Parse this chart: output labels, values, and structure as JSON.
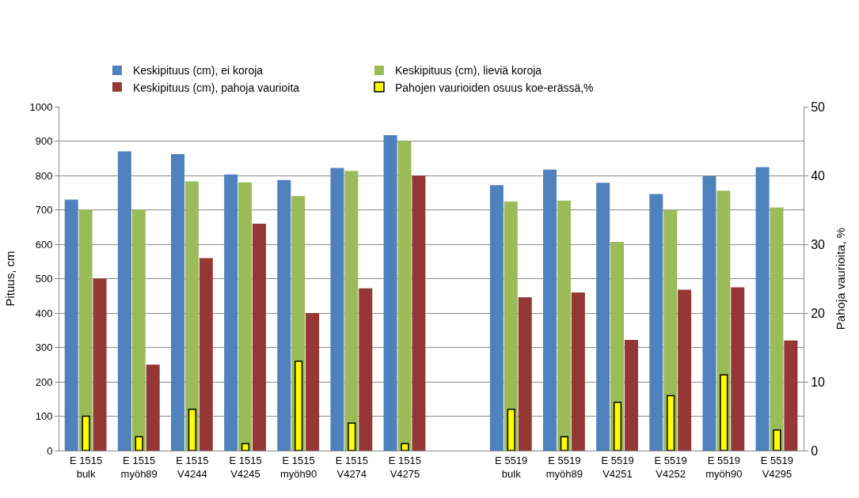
{
  "chart_data": {
    "type": "bar",
    "categories": [
      "E 1515\nbulk",
      "E 1515\nmyöh89",
      "E 1515\nV4244",
      "E 1515\nV4245",
      "E 1515\nmyöh90",
      "E 1515\nV4274",
      "E 1515\nV4275",
      null,
      "E 5519\nbulk",
      "E 5519\nmyöh89",
      "E 5519\nV4251",
      "E 5519\nV4252",
      "E 5519\nmyöh90",
      "E 5519\nV4295"
    ],
    "series": [
      {
        "name": "Keskipituus (cm), ei koroja",
        "color": "#4f81bd",
        "values": [
          730,
          870,
          862,
          803,
          787,
          822,
          917,
          null,
          772,
          817,
          779,
          746,
          798,
          824
        ]
      },
      {
        "name": "Keskipituus (cm), lieviä koroja",
        "color": "#9bbb59",
        "values": [
          700,
          700,
          783,
          780,
          740,
          813,
          900,
          null,
          724,
          727,
          607,
          700,
          756,
          707
        ]
      },
      {
        "name": "Keskipituus (cm), pahoja vaurioita",
        "color": "#953735",
        "values": [
          500,
          250,
          560,
          660,
          400,
          472,
          800,
          null,
          446,
          460,
          322,
          468,
          475,
          320
        ]
      },
      {
        "name": "Pahojen vaurioiden osuus koe-erässä,%",
        "color": "#ffff00",
        "axis": "y2",
        "values": [
          5,
          2,
          6,
          1,
          13,
          4,
          1,
          null,
          6,
          2,
          7,
          8,
          11,
          3
        ]
      }
    ],
    "ylabel": "Pituus, cm",
    "y2label": "Pahoja vaurioita, %",
    "ylim": [
      0,
      1000
    ],
    "yticks": [
      0,
      100,
      200,
      300,
      400,
      500,
      600,
      700,
      800,
      900,
      1000
    ],
    "y2lim": [
      0,
      50
    ],
    "y2ticks": [
      0,
      10,
      20,
      30,
      40,
      50
    ],
    "grid": "y",
    "legend": "top"
  }
}
